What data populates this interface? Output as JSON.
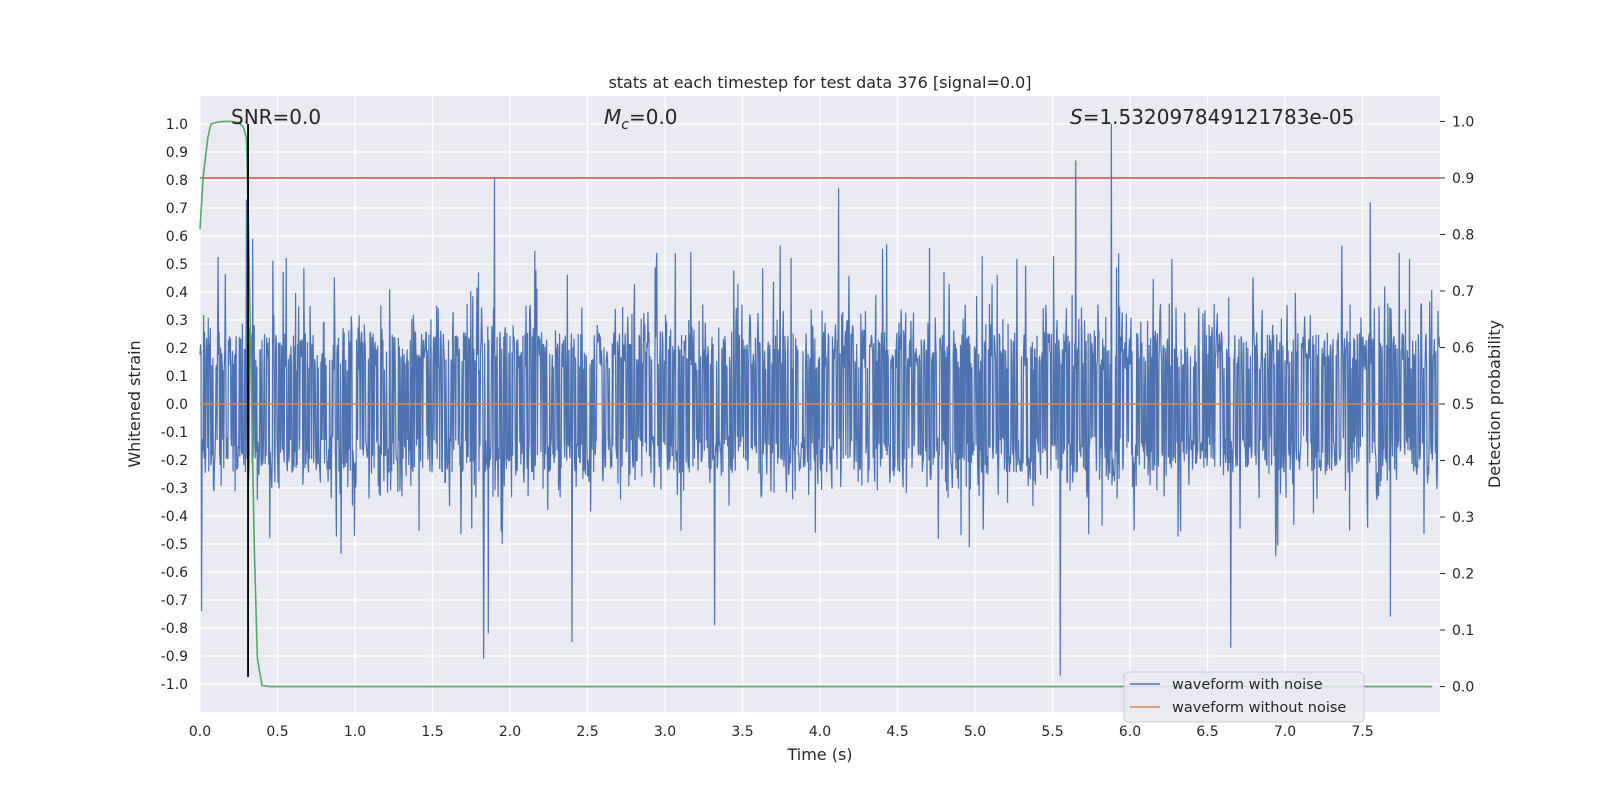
{
  "chart_data": {
    "type": "line",
    "title": "stats at each timestep for test data 376 [signal=0.0]",
    "xlabel": "Time (s)",
    "ylabel": "Whitened strain",
    "y2label": "Detection probability",
    "xlim": [
      0.0,
      8.0
    ],
    "ylim": [
      -1.1,
      1.1
    ],
    "y2lim": [
      -0.045,
      1.045
    ],
    "x_ticks": [
      0.0,
      0.5,
      1.0,
      1.5,
      2.0,
      2.5,
      3.0,
      3.5,
      4.0,
      4.5,
      5.0,
      5.5,
      6.0,
      6.5,
      7.0,
      7.5
    ],
    "x_tick_labels": [
      "0.0",
      "0.5",
      "1.0",
      "1.5",
      "2.0",
      "2.5",
      "3.0",
      "3.5",
      "4.0",
      "4.5",
      "5.0",
      "5.5",
      "6.0",
      "6.5",
      "7.0",
      "7.5"
    ],
    "y_ticks": [
      1.0,
      0.9,
      0.8,
      0.7,
      0.6,
      0.5,
      0.4,
      0.3,
      0.2,
      0.1,
      0.0,
      -0.1,
      -0.2,
      -0.3,
      -0.4,
      -0.5,
      -0.6,
      -0.7,
      -0.8,
      -0.9,
      -1.0
    ],
    "y_tick_labels": [
      "1.0",
      "0.9",
      "0.8",
      "0.7",
      "0.6",
      "0.5",
      "0.4",
      "0.3",
      "0.2",
      "0.1",
      "0.0",
      "-0.1",
      "-0.2",
      "-0.3",
      "-0.4",
      "-0.5",
      "-0.6",
      "-0.7",
      "-0.8",
      "-0.9",
      "-1.0"
    ],
    "y2_ticks": [
      1.0,
      0.9,
      0.8,
      0.7,
      0.6,
      0.5,
      0.4,
      0.3,
      0.2,
      0.1,
      0.0
    ],
    "y2_tick_labels": [
      "1.0",
      "0.9",
      "0.8",
      "0.7",
      "0.6",
      "0.5",
      "0.4",
      "0.3",
      "0.2",
      "0.1",
      "0.0"
    ],
    "grid": true,
    "legend_position": "bottom-right",
    "legend": [
      {
        "label": "waveform with noise",
        "color": "#4c72b0"
      },
      {
        "label": "waveform without noise",
        "color": "#dd8452"
      }
    ],
    "annotations": {
      "snr": "SNR=0.0",
      "mc_symbol": "M",
      "mc_subscript": "c",
      "mc_value": "=0.0",
      "s_symbol": "S",
      "s_value": "=1.532097849121783e-05"
    },
    "series": [
      {
        "name": "waveform with noise",
        "axis": "left",
        "color": "#4c72b0",
        "sample_count": 2400,
        "typical_envelope": [
          -0.38,
          0.4
        ],
        "peaks": [
          {
            "x": 0.3,
            "y": 0.73
          },
          {
            "x": 0.34,
            "y": 0.59
          },
          {
            "x": 1.9,
            "y": 0.81
          },
          {
            "x": 4.12,
            "y": 0.77
          },
          {
            "x": 5.65,
            "y": 0.87
          },
          {
            "x": 5.88,
            "y": 1.0
          },
          {
            "x": 7.55,
            "y": 0.72
          }
        ],
        "troughs": [
          {
            "x": 0.01,
            "y": -0.74
          },
          {
            "x": 1.83,
            "y": -0.91
          },
          {
            "x": 1.86,
            "y": -0.82
          },
          {
            "x": 2.4,
            "y": -0.85
          },
          {
            "x": 3.32,
            "y": -0.79
          },
          {
            "x": 5.55,
            "y": -0.97
          },
          {
            "x": 6.65,
            "y": -0.87
          },
          {
            "x": 7.68,
            "y": -0.76
          }
        ]
      },
      {
        "name": "waveform without noise",
        "axis": "left",
        "color": "#dd8452",
        "x": [
          0.0,
          8.0
        ],
        "y": [
          0.0,
          0.0
        ]
      },
      {
        "name": "detection probability",
        "axis": "right",
        "color": "#55a868",
        "x": [
          0.0,
          0.02,
          0.05,
          0.07,
          0.1,
          0.15,
          0.2,
          0.25,
          0.28,
          0.3,
          0.31,
          0.33,
          0.35,
          0.37,
          0.4,
          0.45,
          0.55,
          1.0,
          4.0,
          7.95
        ],
        "y": [
          0.81,
          0.9,
          0.97,
          0.995,
          0.998,
          1.0,
          1.0,
          0.998,
          0.99,
          0.97,
          0.85,
          0.55,
          0.25,
          0.05,
          0.002,
          0.0,
          0.0,
          0.0,
          0.0,
          0.0
        ]
      }
    ],
    "reference_lines": [
      {
        "name": "threshold",
        "axis": "right",
        "orientation": "horizontal",
        "value": 0.9,
        "color": "#c44e52"
      },
      {
        "name": "detection-time",
        "axis": "left",
        "orientation": "vertical",
        "value": 0.31,
        "range": [
          -0.975,
          1.0
        ],
        "color": "#000000"
      }
    ]
  }
}
